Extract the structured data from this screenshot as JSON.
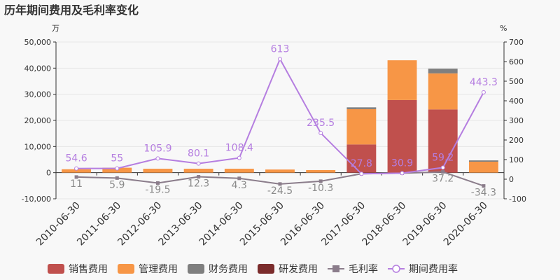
{
  "chart_data": {
    "type": "bar",
    "title": "历年期间费用及毛利率变化",
    "left_axis_unit": "万",
    "right_axis_unit": "%",
    "categories": [
      "2010-06-30",
      "2011-06-30",
      "2012-06-30",
      "2013-06-30",
      "2014-06-30",
      "2015-06-30",
      "2016-06-30",
      "2017-06-30",
      "2018-06-30",
      "2019-06-30",
      "2020-06-30"
    ],
    "ylim": [
      -10000,
      50000
    ],
    "yticks": [
      -10000,
      0,
      10000,
      20000,
      30000,
      40000,
      50000
    ],
    "ytick_labels": [
      "-10,000",
      "0",
      "10,000",
      "20,000",
      "30,000",
      "40,000",
      "50,000"
    ],
    "y2lim": [
      -100,
      700
    ],
    "y2ticks": [
      -100,
      0,
      100,
      200,
      300,
      400,
      500,
      600,
      700
    ],
    "y2tick_labels": [
      "-100",
      "0",
      "100",
      "200",
      "300",
      "400",
      "500",
      "600",
      "700"
    ],
    "stacked": true,
    "series": [
      {
        "name": "销售费用",
        "type": "bar",
        "color": "#c0504d",
        "values": [
          0,
          0,
          0,
          0,
          0,
          0,
          0,
          10800,
          27800,
          24200,
          0
        ]
      },
      {
        "name": "管理费用",
        "type": "bar",
        "color": "#f79646",
        "values": [
          1300,
          1900,
          1500,
          1500,
          1500,
          1200,
          1000,
          13500,
          15200,
          13800,
          4200
        ]
      },
      {
        "name": "财务费用",
        "type": "bar",
        "color": "#7f7f7f",
        "values": [
          0,
          0,
          0,
          0,
          0,
          0,
          0,
          700,
          0,
          1800,
          500
        ]
      },
      {
        "name": "研发费用",
        "type": "bar",
        "color": "#7b2c2c",
        "values": [
          0,
          0,
          0,
          0,
          0,
          0,
          0,
          0,
          0,
          0,
          0
        ]
      },
      {
        "name": "毛利率",
        "type": "line",
        "axis": "right",
        "color": "#8b7d8b",
        "marker": "square",
        "values": [
          11,
          5.9,
          -19.5,
          12.3,
          4.3,
          -24.5,
          -10.3,
          27.8,
          30.9,
          37.2,
          -34.3
        ],
        "labels": [
          "11",
          "5.9",
          "-19.5",
          "12.3",
          "4.3",
          "-24.5",
          "-10.3",
          "",
          "",
          "37.2",
          "-34.3"
        ]
      },
      {
        "name": "期间费用率",
        "type": "line",
        "axis": "right",
        "color": "#b57ee0",
        "marker": "circle",
        "values": [
          54.6,
          55,
          105.9,
          80.1,
          108.4,
          613,
          235.5,
          27.8,
          30.9,
          59.2,
          443.3
        ],
        "labels": [
          "54.6",
          "55",
          "105.9",
          "80.1",
          "108.4",
          "613",
          "235.5",
          "27.8",
          "30.9",
          "59.2",
          "443.3"
        ]
      }
    ],
    "legend_position": "bottom"
  }
}
